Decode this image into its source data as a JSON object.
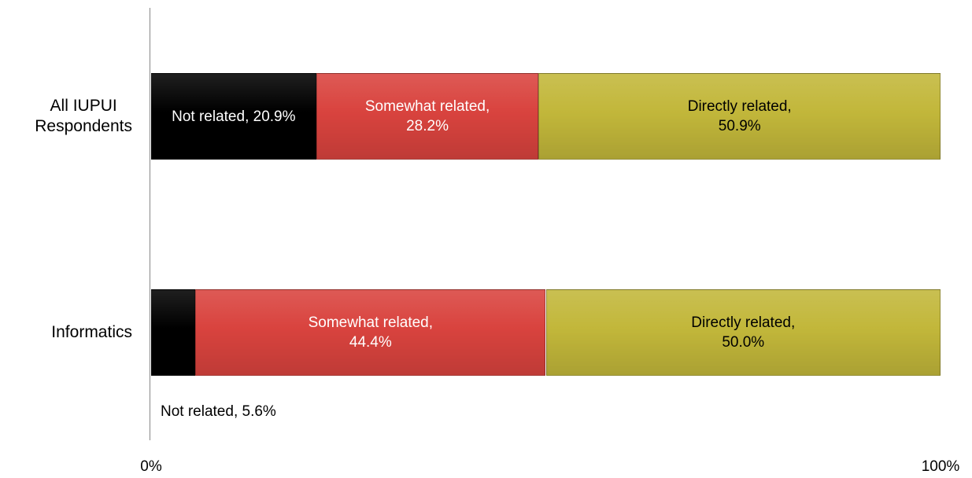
{
  "chart_data": {
    "type": "stacked_bar_horizontal",
    "categories": [
      "All IUPUI\nRespondents",
      "Informatics"
    ],
    "series": [
      {
        "name": "Not related",
        "color": "#000000",
        "values": [
          20.9,
          5.6
        ],
        "value_labels": [
          "Not related, 20.9%",
          "Not related, 5.6%"
        ]
      },
      {
        "name": "Somewhat related",
        "color": "#d9433e",
        "values": [
          28.2,
          44.4
        ],
        "value_labels": [
          "Somewhat related,\n28.2%",
          "Somewhat related,\n44.4%"
        ]
      },
      {
        "name": "Directly related",
        "color": "#c2b73a",
        "values": [
          50.9,
          50.0
        ],
        "value_labels": [
          "Directly related,\n50.9%",
          "Directly related,\n50.0%"
        ]
      }
    ],
    "xlim": [
      0,
      100
    ],
    "xticks": [
      {
        "value": 0,
        "label": "0%"
      },
      {
        "value": 100,
        "label": "100%"
      }
    ]
  }
}
